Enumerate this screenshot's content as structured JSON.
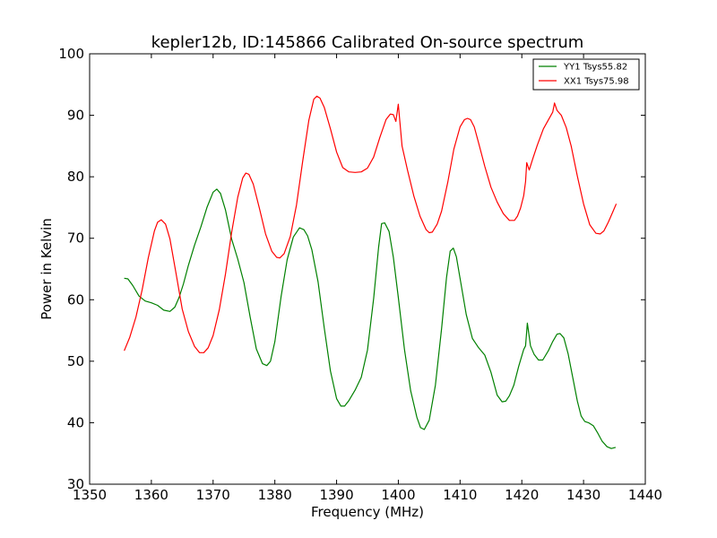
{
  "chart_data": {
    "type": "line",
    "title": "kepler12b, ID:145866 Calibrated On-source spectrum",
    "xlabel": "Frequency (MHz)",
    "ylabel": "Power in Kelvin",
    "xlim": [
      1350,
      1440
    ],
    "ylim": [
      30,
      100
    ],
    "xticks": [
      1350,
      1360,
      1370,
      1380,
      1390,
      1400,
      1410,
      1420,
      1430,
      1440
    ],
    "yticks": [
      30,
      40,
      50,
      60,
      70,
      80,
      90,
      100
    ],
    "grid": false,
    "legend": "top-right",
    "series": [
      {
        "name": "YY1 Tsys55.82",
        "color": "#008000",
        "x": [
          1355.6,
          1356.2,
          1357.0,
          1358.0,
          1359.0,
          1360.0,
          1361.0,
          1362.0,
          1363.0,
          1363.8,
          1364.5,
          1365.2,
          1366.0,
          1367.0,
          1368.0,
          1369.0,
          1370.0,
          1370.6,
          1371.2,
          1372.0,
          1373.0,
          1374.0,
          1375.0,
          1376.0,
          1377.0,
          1378.0,
          1378.7,
          1379.3,
          1380.0,
          1381.0,
          1382.0,
          1383.0,
          1384.0,
          1384.7,
          1385.3,
          1386.0,
          1387.0,
          1388.0,
          1389.0,
          1390.0,
          1390.7,
          1391.3,
          1392.0,
          1393.0,
          1394.0,
          1395.0,
          1396.0,
          1396.8,
          1397.3,
          1397.8,
          1398.5,
          1399.2,
          1400.0,
          1401.0,
          1402.0,
          1403.0,
          1403.6,
          1404.2,
          1405.0,
          1406.0,
          1407.0,
          1407.8,
          1408.4,
          1408.9,
          1409.4,
          1410.0,
          1411.0,
          1412.0,
          1413.0,
          1414.0,
          1415.0,
          1416.0,
          1416.8,
          1417.4,
          1418.0,
          1418.7,
          1419.5,
          1420.3,
          1420.6,
          1420.9,
          1421.4,
          1422.0,
          1422.7,
          1423.4,
          1424.3,
          1425.0,
          1425.7,
          1426.2,
          1426.8,
          1427.5,
          1428.3,
          1429.0,
          1429.6,
          1430.2,
          1430.8,
          1431.6,
          1432.3,
          1433.0,
          1433.8,
          1434.5,
          1435.2
        ],
        "y": [
          63.5,
          63.4,
          62.3,
          60.6,
          59.8,
          59.5,
          59.1,
          58.3,
          58.1,
          58.8,
          60.4,
          62.6,
          65.6,
          68.9,
          71.8,
          75.0,
          77.5,
          78.0,
          77.3,
          74.6,
          69.9,
          66.6,
          62.8,
          57.2,
          52.0,
          49.6,
          49.3,
          50.0,
          53.2,
          60.5,
          66.5,
          70.2,
          71.7,
          71.4,
          70.4,
          68.1,
          62.9,
          55.4,
          48.4,
          43.9,
          42.7,
          42.7,
          43.6,
          45.3,
          47.4,
          51.8,
          60.2,
          68.5,
          72.4,
          72.5,
          71.1,
          66.9,
          60.4,
          51.9,
          45.2,
          40.9,
          39.2,
          38.9,
          40.4,
          46.1,
          55.3,
          63.6,
          67.9,
          68.4,
          67.0,
          63.5,
          57.6,
          53.7,
          52.2,
          51.0,
          48.2,
          44.5,
          43.4,
          43.5,
          44.4,
          46.1,
          49.2,
          51.9,
          52.5,
          56.2,
          52.5,
          51.1,
          50.2,
          50.2,
          51.7,
          53.2,
          54.4,
          54.5,
          53.8,
          51.2,
          47.1,
          43.5,
          41.1,
          40.2,
          40.0,
          39.5,
          38.3,
          37.0,
          36.1,
          35.8,
          36.0
        ]
      },
      {
        "name": "XX1 Tsys75.98",
        "color": "#ff0000",
        "x": [
          1355.6,
          1356.5,
          1357.5,
          1358.5,
          1359.5,
          1360.5,
          1361.0,
          1361.6,
          1362.3,
          1363.0,
          1364.0,
          1365.0,
          1366.0,
          1367.0,
          1367.8,
          1368.5,
          1369.2,
          1370.0,
          1371.0,
          1372.0,
          1373.0,
          1374.0,
          1374.8,
          1375.3,
          1375.8,
          1376.5,
          1377.5,
          1378.5,
          1379.5,
          1380.3,
          1380.8,
          1381.5,
          1382.5,
          1383.5,
          1384.5,
          1385.5,
          1386.3,
          1386.8,
          1387.3,
          1388.0,
          1389.0,
          1390.0,
          1391.0,
          1392.0,
          1393.0,
          1394.0,
          1395.0,
          1396.0,
          1397.0,
          1398.0,
          1398.7,
          1399.2,
          1399.6,
          1400.0,
          1400.3,
          1400.6,
          1401.5,
          1402.5,
          1403.5,
          1404.5,
          1405.0,
          1405.5,
          1406.3,
          1407.0,
          1408.0,
          1409.0,
          1410.0,
          1410.7,
          1411.2,
          1411.7,
          1412.3,
          1413.0,
          1414.0,
          1415.0,
          1416.0,
          1417.0,
          1418.0,
          1418.8,
          1419.3,
          1419.8,
          1420.3,
          1420.6,
          1420.8,
          1421.2,
          1421.8,
          1422.5,
          1423.5,
          1424.5,
          1425.0,
          1425.3,
          1425.7,
          1426.4,
          1427.2,
          1428.0,
          1429.0,
          1430.0,
          1431.0,
          1432.0,
          1432.7,
          1433.3,
          1434.0,
          1434.7,
          1435.3
        ],
        "y": [
          51.7,
          53.9,
          57.2,
          61.6,
          66.8,
          71.2,
          72.6,
          73.0,
          72.3,
          69.9,
          64.3,
          58.5,
          54.8,
          52.4,
          51.4,
          51.4,
          52.2,
          54.2,
          58.4,
          64.2,
          70.9,
          76.7,
          79.8,
          80.6,
          80.4,
          78.8,
          74.9,
          70.7,
          67.9,
          66.9,
          66.8,
          67.5,
          70.3,
          75.4,
          82.5,
          89.2,
          92.6,
          93.1,
          92.8,
          91.3,
          87.8,
          84.0,
          81.5,
          80.8,
          80.7,
          80.8,
          81.4,
          83.2,
          86.4,
          89.3,
          90.2,
          90.1,
          89.0,
          91.8,
          88.4,
          85.0,
          81.0,
          76.9,
          73.6,
          71.4,
          70.9,
          71.0,
          72.3,
          74.4,
          79.1,
          84.5,
          88.1,
          89.3,
          89.5,
          89.3,
          88.1,
          85.5,
          81.7,
          78.3,
          75.9,
          74.0,
          72.9,
          72.9,
          73.6,
          74.9,
          76.9,
          79.2,
          82.3,
          81.1,
          83.0,
          85.1,
          87.8,
          89.6,
          90.5,
          92.0,
          90.8,
          90.0,
          88.0,
          85.0,
          80.1,
          75.6,
          72.2,
          70.8,
          70.7,
          71.2,
          72.6,
          74.2,
          75.6
        ]
      }
    ]
  }
}
